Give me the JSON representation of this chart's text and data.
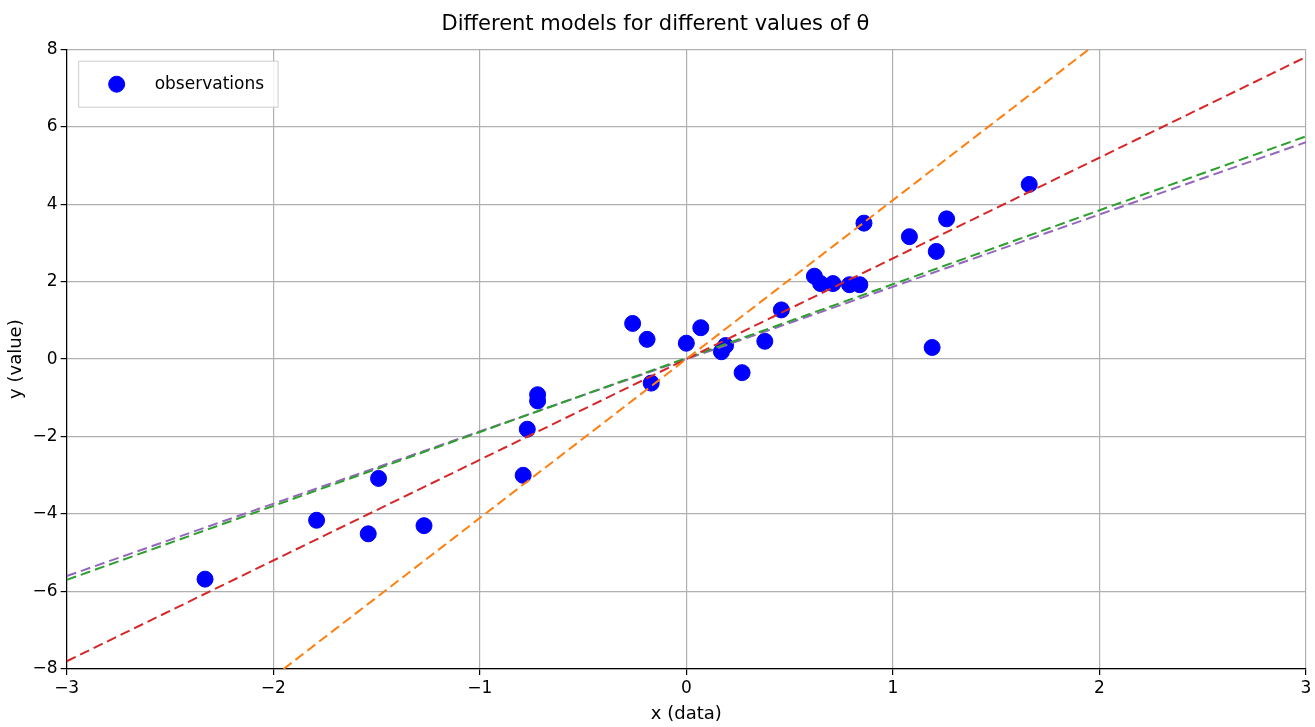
{
  "chart_data": {
    "type": "scatter",
    "title": "Different models for different values of θ",
    "xlabel": "x (data)",
    "ylabel": "y (value)",
    "xlim": [
      -3,
      3
    ],
    "xticks": [
      {
        "value": -3,
        "label": "−3"
      },
      {
        "value": -2,
        "label": "−2"
      },
      {
        "value": -1,
        "label": "−1"
      },
      0,
      1,
      2,
      3
    ],
    "ylim": [
      -8,
      8
    ],
    "yticks": [
      {
        "value": -8,
        "label": "−8"
      },
      {
        "value": -6,
        "label": "−6"
      },
      {
        "value": -4,
        "label": "−4"
      },
      {
        "value": -2,
        "label": "−2"
      },
      0,
      2,
      4,
      6,
      8
    ],
    "grid": true,
    "legend": "top left",
    "marker": "circle",
    "series": [
      {
        "name": "observations",
        "color": "#0000ff",
        "x": [
          -2.33,
          -1.79,
          -1.54,
          -1.49,
          -1.27,
          -0.79,
          -0.77,
          -0.72,
          -0.72,
          -0.26,
          -0.19,
          -0.17,
          0.0,
          0.07,
          0.17,
          0.19,
          0.27,
          0.38,
          0.46,
          0.62,
          0.65,
          0.71,
          0.79,
          0.84,
          0.86,
          1.08,
          1.19,
          1.21,
          1.26,
          1.66
        ],
        "values": [
          -5.68,
          -4.16,
          -4.51,
          -3.08,
          -4.3,
          -3.0,
          -1.81,
          -0.92,
          -1.08,
          0.92,
          0.51,
          -0.62,
          0.41,
          0.81,
          0.19,
          0.35,
          -0.35,
          0.46,
          1.27,
          2.14,
          1.95,
          1.95,
          1.92,
          1.92,
          3.51,
          3.16,
          0.3,
          2.78,
          3.62,
          4.51
        ]
      },
      {
        "type": "line",
        "color": "#ff7f0e",
        "line_style": "dashed",
        "marker": "none",
        "x": [
          -1.95,
          1.95
        ],
        "values": [
          -8,
          8
        ]
      },
      {
        "type": "line",
        "color": "#d62728",
        "line_style": "dashed",
        "marker": "none",
        "x": [
          -3,
          3
        ],
        "values": [
          -7.8,
          7.8
        ]
      },
      {
        "type": "line",
        "color": "#2ca02c",
        "line_style": "dashed",
        "marker": "none",
        "x": [
          -3,
          3
        ],
        "values": [
          -5.7,
          5.75
        ]
      },
      {
        "type": "line",
        "color": "#9467bd",
        "line_style": "dashed",
        "marker": "none",
        "x": [
          -3,
          3
        ],
        "values": [
          -5.6,
          5.6
        ]
      }
    ]
  }
}
